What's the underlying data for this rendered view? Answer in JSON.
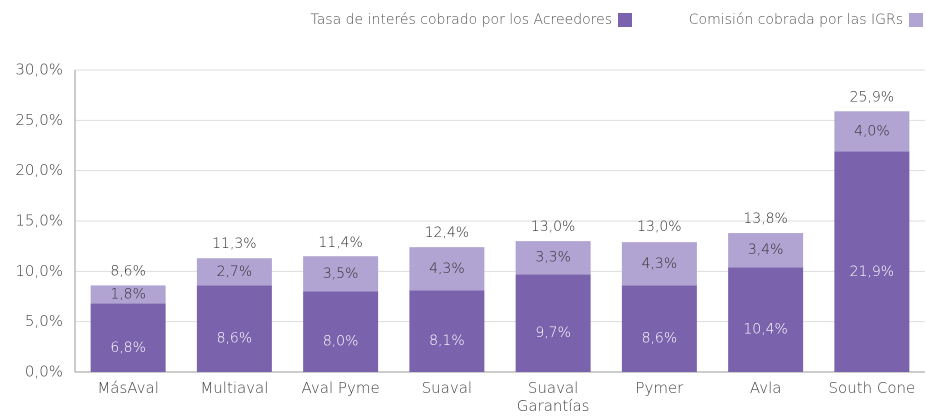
{
  "chart_data": {
    "type": "stacked_bar",
    "categories": [
      "MásAval",
      "Multiaval",
      "Aval Pyme",
      "Suaval",
      "Suaval\nGarantías",
      "Pymer",
      "Avla",
      "South Cone"
    ],
    "series": [
      {
        "name": "Tasa de interés cobrado por los Acreedores",
        "color": "#7b62ad",
        "values": [
          6.8,
          8.6,
          8.0,
          8.1,
          9.7,
          8.6,
          10.4,
          21.9
        ],
        "value_labels": [
          "6,8%",
          "8,6%",
          "8,0%",
          "8,1%",
          "9,7%",
          "8,6%",
          "10,4%",
          "21,9%"
        ]
      },
      {
        "name": "Comisión cobrada por las IGRs",
        "color": "#b1a3d2",
        "values": [
          1.8,
          2.7,
          3.5,
          4.3,
          3.3,
          4.3,
          3.4,
          4.0
        ],
        "value_labels": [
          "1,8%",
          "2,7%",
          "3,5%",
          "4,3%",
          "3,3%",
          "4,3%",
          "3,4%",
          "4,0%"
        ]
      }
    ],
    "totals": [
      8.6,
      11.3,
      11.4,
      12.4,
      13.0,
      13.0,
      13.8,
      25.9
    ],
    "total_labels": [
      "8,6%",
      "11,3%",
      "11,4%",
      "12,4%",
      "13,0%",
      "13,0%",
      "13,8%",
      "25,9%"
    ],
    "ylim": [
      0,
      30
    ],
    "yticks": [
      {
        "value": 0,
        "label": "0,0%"
      },
      {
        "value": 5,
        "label": "5,0%"
      },
      {
        "value": 10,
        "label": "10,0%"
      },
      {
        "value": 15,
        "label": "15,0%"
      },
      {
        "value": 20,
        "label": "20,0%"
      },
      {
        "value": 25,
        "label": "25,0%"
      },
      {
        "value": 30,
        "label": "30,0%"
      }
    ],
    "grid": true,
    "legend": "top-right"
  }
}
